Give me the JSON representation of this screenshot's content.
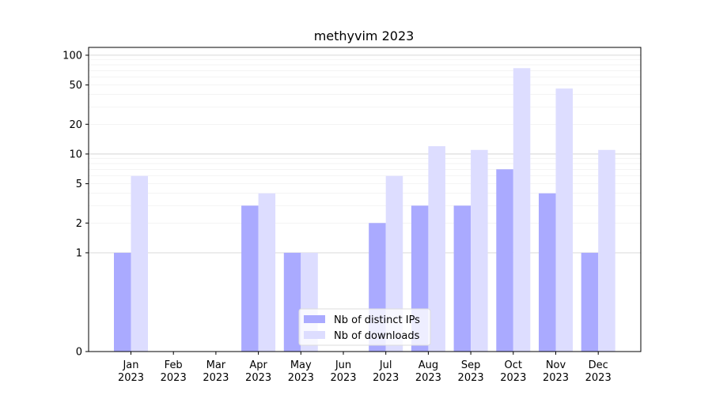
{
  "chart_data": {
    "type": "bar",
    "title": "methyvim 2023",
    "xlabel": "",
    "ylabel": "",
    "y_scale": "symlog",
    "ylim": [
      0,
      120
    ],
    "y_ticks": [
      "0",
      "1",
      "2",
      "5",
      "10",
      "20",
      "50",
      "100"
    ],
    "categories": [
      "Jan\n2023",
      "Feb\n2023",
      "Mar\n2023",
      "Apr\n2023",
      "May\n2023",
      "Jun\n2023",
      "Jul\n2023",
      "Aug\n2023",
      "Sep\n2023",
      "Oct\n2023",
      "Nov\n2023",
      "Dec\n2023"
    ],
    "category_lines": [
      [
        "Jan",
        "2023"
      ],
      [
        "Feb",
        "2023"
      ],
      [
        "Mar",
        "2023"
      ],
      [
        "Apr",
        "2023"
      ],
      [
        "May",
        "2023"
      ],
      [
        "Jun",
        "2023"
      ],
      [
        "Jul",
        "2023"
      ],
      [
        "Aug",
        "2023"
      ],
      [
        "Sep",
        "2023"
      ],
      [
        "Oct",
        "2023"
      ],
      [
        "Nov",
        "2023"
      ],
      [
        "Dec",
        "2023"
      ]
    ],
    "series": [
      {
        "name": "Nb of distinct IPs",
        "color": "#aaaaff",
        "values": [
          1,
          0,
          0,
          3,
          1,
          0,
          2,
          3,
          3,
          7,
          4,
          1
        ]
      },
      {
        "name": "Nb of downloads",
        "color": "#ddddff",
        "values": [
          6,
          0,
          0,
          4,
          1,
          0,
          6,
          12,
          11,
          74,
          46,
          11
        ]
      }
    ],
    "grid": true,
    "legend_position": "lower-center"
  }
}
